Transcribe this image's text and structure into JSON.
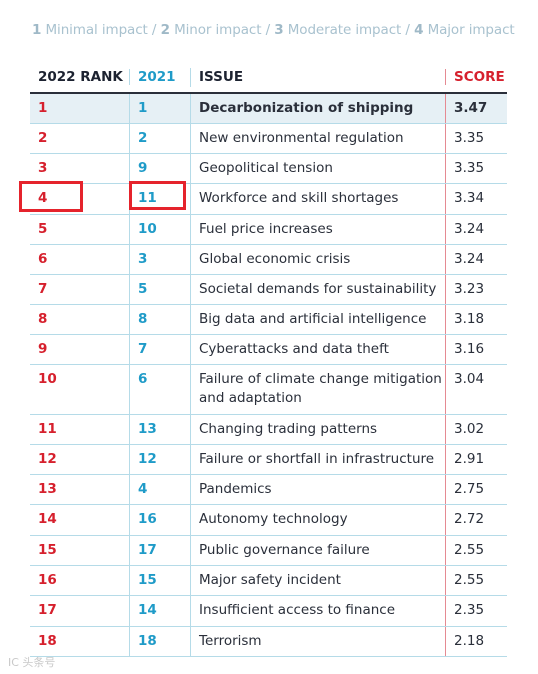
{
  "legend": {
    "items": [
      {
        "num": "1",
        "label": "Minimal impact"
      },
      {
        "num": "2",
        "label": "Minor impact"
      },
      {
        "num": "3",
        "label": "Moderate impact"
      },
      {
        "num": "4",
        "label": "Major impact"
      }
    ]
  },
  "table": {
    "headers": {
      "rank2022": "2022 RANK",
      "rank2021": "2021",
      "issue": "ISSUE",
      "score": "SCORE"
    },
    "rows": [
      {
        "r22": "1",
        "r21": "1",
        "issue": "Decarbonization of shipping",
        "score": "3.47"
      },
      {
        "r22": "2",
        "r21": "2",
        "issue": "New environmental regulation",
        "score": "3.35"
      },
      {
        "r22": "3",
        "r21": "9",
        "issue": "Geopolitical tension",
        "score": "3.35"
      },
      {
        "r22": "4",
        "r21": "11",
        "issue": "Workforce and skill shortages",
        "score": "3.34"
      },
      {
        "r22": "5",
        "r21": "10",
        "issue": "Fuel price increases",
        "score": "3.24"
      },
      {
        "r22": "6",
        "r21": "3",
        "issue": "Global economic crisis",
        "score": "3.24"
      },
      {
        "r22": "7",
        "r21": "5",
        "issue": "Societal demands for sustainability",
        "score": "3.23"
      },
      {
        "r22": "8",
        "r21": "8",
        "issue": "Big data and artificial intelligence",
        "score": "3.18"
      },
      {
        "r22": "9",
        "r21": "7",
        "issue": "Cyberattacks and data theft",
        "score": "3.16"
      },
      {
        "r22": "10",
        "r21": "6",
        "issue": "Failure of climate change mitigation and adaptation",
        "score": "3.04"
      },
      {
        "r22": "11",
        "r21": "13",
        "issue": "Changing trading patterns",
        "score": "3.02"
      },
      {
        "r22": "12",
        "r21": "12",
        "issue": "Failure or shortfall in infrastructure",
        "score": "2.91"
      },
      {
        "r22": "13",
        "r21": "4",
        "issue": "Pandemics",
        "score": "2.75"
      },
      {
        "r22": "14",
        "r21": "16",
        "issue": "Autonomy technology",
        "score": "2.72"
      },
      {
        "r22": "15",
        "r21": "17",
        "issue": "Public governance failure",
        "score": "2.55"
      },
      {
        "r22": "16",
        "r21": "15",
        "issue": "Major safety incident",
        "score": "2.55"
      },
      {
        "r22": "17",
        "r21": "14",
        "issue": "Insufficient access to finance",
        "score": "2.35"
      },
      {
        "r22": "18",
        "r21": "18",
        "issue": "Terrorism",
        "score": "2.18"
      }
    ]
  },
  "colors": {
    "rank2022": "#d6202d",
    "rank2021": "#1f9bc8",
    "highlight_box": "#e5232c"
  },
  "watermark": "IC 头条号"
}
